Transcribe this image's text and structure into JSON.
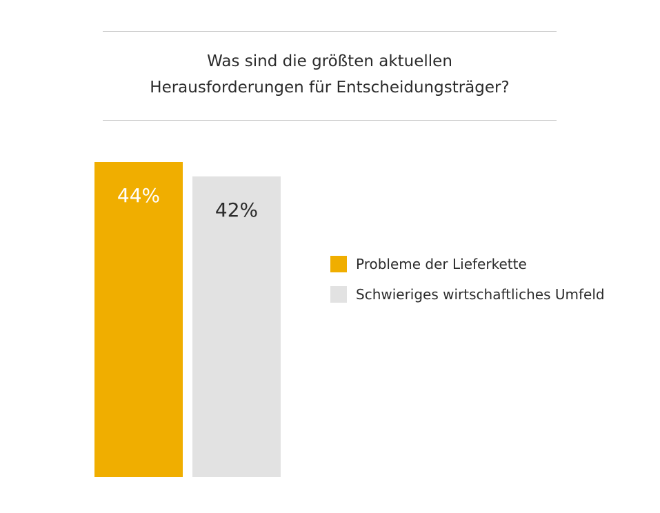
{
  "chart_data": {
    "type": "bar",
    "title": "Was sind die größten aktuellen Herausforderungen für Entscheidungsträger?",
    "title_lines": [
      "Was sind die größten aktuellen",
      "Herausforderungen für Entscheidungsträger?"
    ],
    "unit": "%",
    "ylim": [
      0,
      44
    ],
    "grid": false,
    "legend_position": "right",
    "series": [
      {
        "name": "Probleme der Lieferkette",
        "value": 44,
        "label": "44%",
        "color": "#F0AE00",
        "label_color": "#ffffff"
      },
      {
        "name": "Schwieriges wirtschaftliches Umfeld",
        "value": 42,
        "label": "42%",
        "color": "#E2E2E2",
        "label_color": "#2b2b2b"
      }
    ]
  }
}
